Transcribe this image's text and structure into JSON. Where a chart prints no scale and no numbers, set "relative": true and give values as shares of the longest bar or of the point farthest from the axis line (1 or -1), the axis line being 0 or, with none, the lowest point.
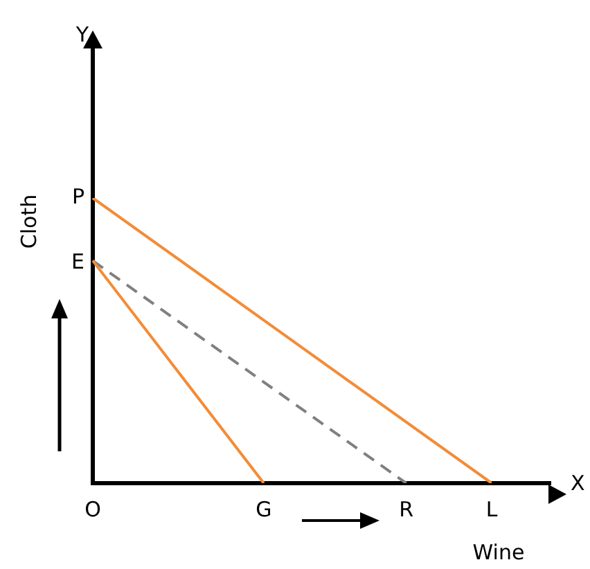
{
  "chart_data": {
    "type": "line",
    "relative": true,
    "xlabel": "Wine",
    "ylabel": "Cloth",
    "legend": false,
    "grid": false,
    "marker": "none",
    "categories": [
      "O",
      null,
      null,
      null,
      null,
      null,
      "G",
      null,
      null,
      null,
      null,
      "R",
      null,
      null,
      "L"
    ],
    "series": [
      {
        "color": "#f28c38",
        "values": [
          1,
          null,
          null,
          null,
          null,
          null,
          null,
          null,
          null,
          null,
          null,
          null,
          null,
          null,
          0
        ]
      },
      {
        "color": "#f28c38",
        "values": [
          0.78,
          null,
          null,
          null,
          null,
          null,
          0,
          null,
          null,
          null,
          null,
          null,
          null,
          null,
          null
        ]
      },
      {
        "color": "#808080",
        "values": [
          0.78,
          null,
          null,
          null,
          null,
          null,
          null,
          null,
          null,
          null,
          null,
          0,
          null,
          null,
          null
        ],
        "line_style": "dashed"
      }
    ],
    "annotations": [
      "Y",
      "X",
      "E",
      "P"
    ]
  }
}
